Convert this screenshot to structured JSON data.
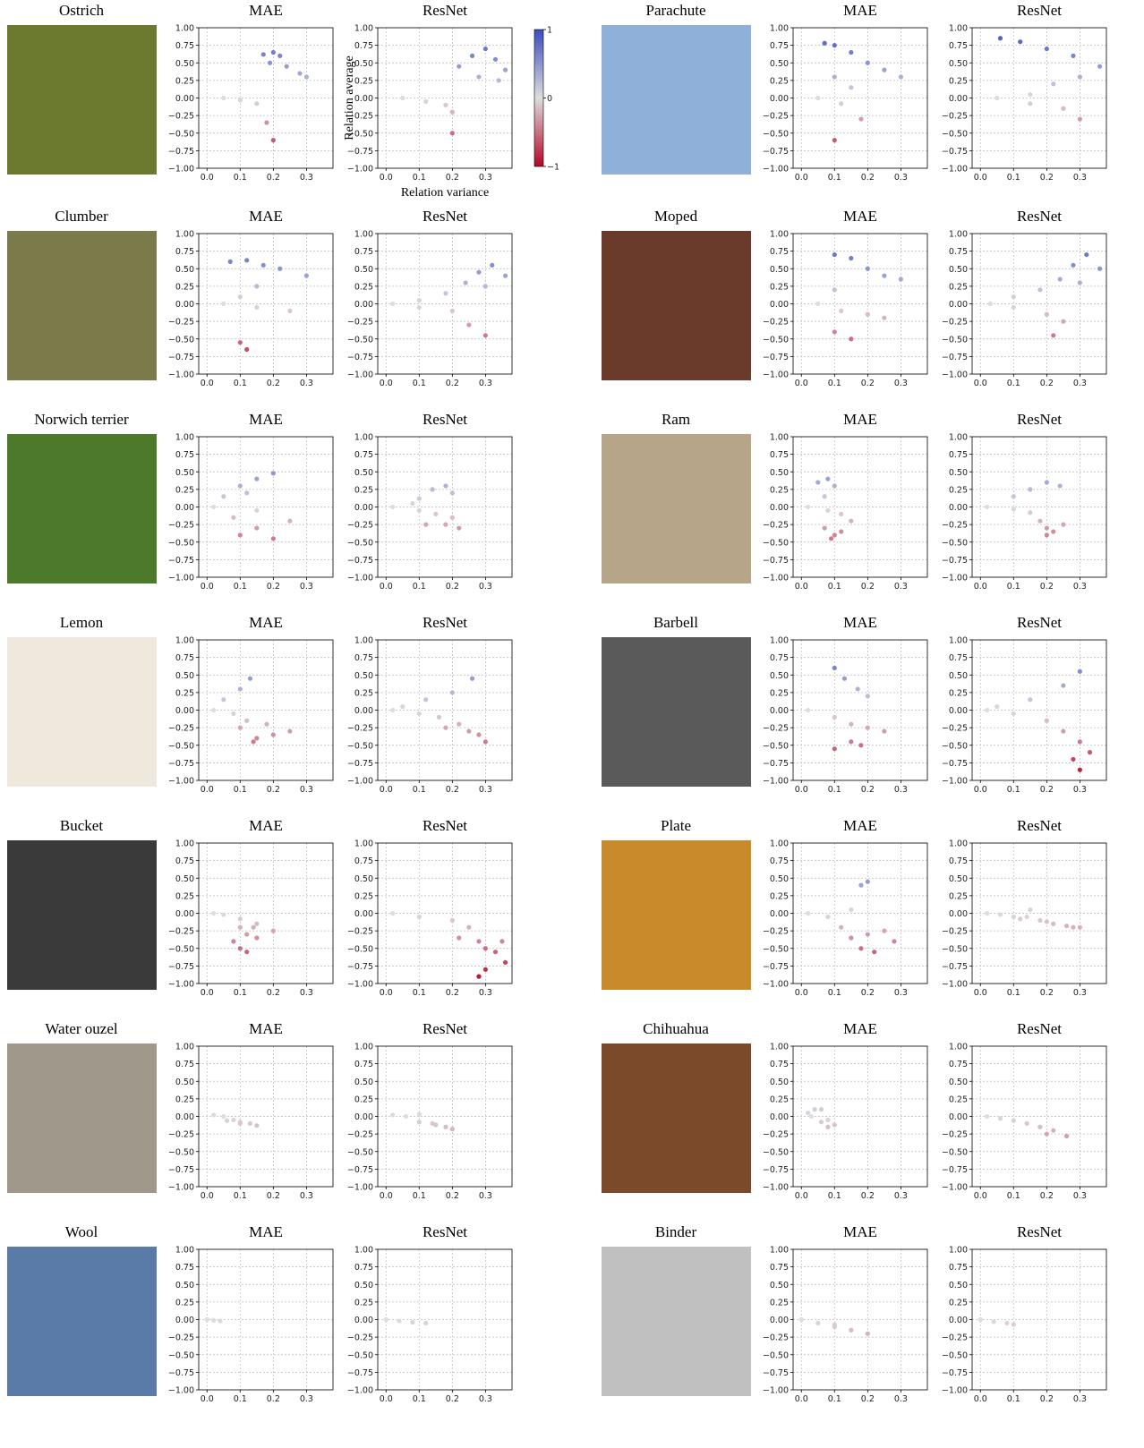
{
  "chart_data": {
    "axes": {
      "xlim": [
        -0.025,
        0.38
      ],
      "ylim": [
        -1,
        1
      ],
      "xticks": [
        {
          "value": 0,
          "label": "0.0"
        },
        {
          "value": 0.1,
          "label": "0.1"
        },
        {
          "value": 0.2,
          "label": "0.2"
        },
        {
          "value": 0.3,
          "label": "0.3"
        }
      ],
      "yticks": [
        {
          "value": 1,
          "label": "1.00"
        },
        {
          "value": 0.75,
          "label": "0.75"
        },
        {
          "value": 0.5,
          "label": "0.50"
        },
        {
          "value": 0.25,
          "label": "0.25"
        },
        {
          "value": 0,
          "label": "0.00"
        },
        {
          "value": -0.25,
          "label": "−0.25"
        },
        {
          "value": -0.5,
          "label": "−0.50"
        },
        {
          "value": -0.75,
          "label": "−0.75"
        },
        {
          "value": -1,
          "label": "−1.00"
        }
      ],
      "grid": true
    },
    "colorbar": {
      "colormap": "coolwarm",
      "clim": [
        -1,
        1
      ],
      "ticks": [
        1,
        0,
        {
          "value": -1,
          "label": "−1"
        }
      ]
    },
    "xlabel": "Relation variance",
    "ylabel": "Relation average",
    "panels": [
      {
        "label": "Ostrich",
        "charts": [
          {
            "type": "scatter",
            "title": "MAE",
            "x": [
              0.17,
              0.2,
              0.22,
              0.19,
              0.24,
              0.28,
              0.3,
              0.05,
              0.1,
              0.15,
              0.18,
              0.2
            ],
            "y": [
              0.62,
              0.65,
              0.6,
              0.5,
              0.45,
              0.35,
              0.3,
              0,
              -0.03,
              -0.08,
              -0.35,
              -0.6
            ]
          },
          {
            "type": "scatter",
            "title": "ResNet",
            "x": [
              0.22,
              0.26,
              0.3,
              0.33,
              0.36,
              0.28,
              0.34,
              0.05,
              0.12,
              0.18,
              0.2,
              0.2
            ],
            "y": [
              0.45,
              0.6,
              0.7,
              0.55,
              0.4,
              0.3,
              0.25,
              0,
              -0.05,
              -0.1,
              -0.2,
              -0.5
            ]
          }
        ]
      },
      {
        "label": "Parachute",
        "charts": [
          {
            "type": "scatter",
            "title": "MAE",
            "x": [
              0.07,
              0.1,
              0.15,
              0.2,
              0.25,
              0.3,
              0.1,
              0.15,
              0.05,
              0.12,
              0.18,
              0.1
            ],
            "y": [
              0.78,
              0.75,
              0.65,
              0.5,
              0.4,
              0.3,
              0.3,
              0.15,
              0,
              -0.08,
              -0.3,
              -0.6
            ]
          },
          {
            "type": "scatter",
            "title": "ResNet",
            "x": [
              0.06,
              0.12,
              0.2,
              0.28,
              0.36,
              0.3,
              0.22,
              0.15,
              0.05,
              0.15,
              0.25,
              0.3
            ],
            "y": [
              0.85,
              0.8,
              0.7,
              0.6,
              0.45,
              0.3,
              0.2,
              0.05,
              0,
              -0.08,
              -0.15,
              -0.3
            ]
          }
        ]
      },
      {
        "label": "Clumber",
        "charts": [
          {
            "type": "scatter",
            "title": "MAE",
            "x": [
              0.07,
              0.12,
              0.17,
              0.22,
              0.3,
              0.15,
              0.1,
              0.05,
              0.15,
              0.25,
              0.1,
              0.12
            ],
            "y": [
              0.6,
              0.62,
              0.55,
              0.5,
              0.4,
              0.25,
              0.1,
              0,
              -0.05,
              -0.1,
              -0.55,
              -0.65
            ]
          },
          {
            "type": "scatter",
            "title": "ResNet",
            "x": [
              0.02,
              0.1,
              0.18,
              0.24,
              0.28,
              0.32,
              0.36,
              0.3,
              0.1,
              0.2,
              0.25,
              0.3
            ],
            "y": [
              0,
              0.05,
              0.15,
              0.3,
              0.45,
              0.55,
              0.4,
              0.25,
              -0.05,
              -0.1,
              -0.3,
              -0.45
            ]
          }
        ]
      },
      {
        "label": "Moped",
        "charts": [
          {
            "type": "scatter",
            "title": "MAE",
            "x": [
              0.1,
              0.15,
              0.2,
              0.25,
              0.3,
              0.1,
              0.05,
              0.12,
              0.2,
              0.25,
              0.1,
              0.15
            ],
            "y": [
              0.7,
              0.65,
              0.5,
              0.4,
              0.35,
              0.2,
              0,
              -0.1,
              -0.15,
              -0.2,
              -0.4,
              -0.5
            ]
          },
          {
            "type": "scatter",
            "title": "ResNet",
            "x": [
              0.03,
              0.1,
              0.18,
              0.24,
              0.28,
              0.32,
              0.36,
              0.3,
              0.1,
              0.2,
              0.25,
              0.22
            ],
            "y": [
              0,
              0.1,
              0.2,
              0.35,
              0.55,
              0.7,
              0.5,
              0.3,
              -0.05,
              -0.15,
              -0.25,
              -0.45
            ]
          }
        ]
      },
      {
        "label": "Norwich terrier",
        "charts": [
          {
            "type": "scatter",
            "title": "MAE",
            "x": [
              0.05,
              0.1,
              0.15,
              0.2,
              0.12,
              0.02,
              0.15,
              0.25,
              0.08,
              0.15,
              0.2,
              0.1
            ],
            "y": [
              0.15,
              0.3,
              0.4,
              0.48,
              0.2,
              0,
              -0.05,
              -0.2,
              -0.15,
              -0.3,
              -0.45,
              -0.4
            ]
          },
          {
            "type": "scatter",
            "title": "ResNet",
            "x": [
              0.1,
              0.14,
              0.18,
              0.2,
              0.02,
              0.1,
              0.15,
              0.2,
              0.22,
              0.12,
              0.18,
              0.08
            ],
            "y": [
              0.12,
              0.25,
              0.3,
              0.2,
              0,
              -0.05,
              -0.1,
              -0.15,
              -0.3,
              -0.25,
              -0.25,
              0.05
            ]
          }
        ]
      },
      {
        "label": "Ram",
        "charts": [
          {
            "type": "scatter",
            "title": "MAE",
            "x": [
              0.05,
              0.08,
              0.1,
              0.07,
              0.02,
              0.08,
              0.12,
              0.15,
              0.07,
              0.1,
              0.12,
              0.09
            ],
            "y": [
              0.35,
              0.4,
              0.3,
              0.15,
              0,
              -0.05,
              -0.1,
              -0.2,
              -0.3,
              -0.4,
              -0.35,
              -0.45
            ]
          },
          {
            "type": "scatter",
            "title": "ResNet",
            "x": [
              0.1,
              0.15,
              0.2,
              0.24,
              0.02,
              0.1,
              0.15,
              0.18,
              0.2,
              0.22,
              0.25,
              0.2
            ],
            "y": [
              0.15,
              0.25,
              0.35,
              0.3,
              0,
              -0.03,
              -0.08,
              -0.2,
              -0.3,
              -0.35,
              -0.25,
              -0.4
            ]
          }
        ]
      },
      {
        "label": "Lemon",
        "charts": [
          {
            "type": "scatter",
            "title": "MAE",
            "x": [
              0.05,
              0.1,
              0.13,
              0.02,
              0.08,
              0.12,
              0.18,
              0.25,
              0.15,
              0.2,
              0.1,
              0.14
            ],
            "y": [
              0.15,
              0.3,
              0.45,
              0,
              -0.05,
              -0.15,
              -0.2,
              -0.3,
              -0.4,
              -0.35,
              -0.25,
              -0.45
            ]
          },
          {
            "type": "scatter",
            "title": "ResNet",
            "x": [
              0.05,
              0.12,
              0.2,
              0.26,
              0.02,
              0.1,
              0.16,
              0.22,
              0.28,
              0.3,
              0.25,
              0.18
            ],
            "y": [
              0.05,
              0.15,
              0.25,
              0.45,
              0,
              -0.05,
              -0.1,
              -0.2,
              -0.35,
              -0.45,
              -0.3,
              -0.25
            ]
          }
        ]
      },
      {
        "label": "Barbell",
        "charts": [
          {
            "type": "scatter",
            "title": "MAE",
            "x": [
              0.1,
              0.13,
              0.17,
              0.2,
              0.02,
              0.1,
              0.15,
              0.2,
              0.25,
              0.1,
              0.15,
              0.18
            ],
            "y": [
              0.6,
              0.45,
              0.3,
              0.2,
              0,
              -0.1,
              -0.2,
              -0.25,
              -0.3,
              -0.55,
              -0.45,
              -0.5
            ]
          },
          {
            "type": "scatter",
            "title": "ResNet",
            "x": [
              0.05,
              0.15,
              0.25,
              0.3,
              0.02,
              0.1,
              0.2,
              0.25,
              0.3,
              0.33,
              0.28,
              0.3
            ],
            "y": [
              0.05,
              0.15,
              0.35,
              0.55,
              0,
              -0.05,
              -0.15,
              -0.3,
              -0.45,
              -0.6,
              -0.7,
              -0.85
            ]
          }
        ]
      },
      {
        "label": "Bucket",
        "charts": [
          {
            "type": "scatter",
            "title": "MAE",
            "x": [
              0.02,
              0.05,
              0.1,
              0.15,
              0.2,
              0.1,
              0.12,
              0.15,
              0.08,
              0.1,
              0.12,
              0.14
            ],
            "y": [
              0,
              -0.02,
              -0.08,
              -0.15,
              -0.25,
              -0.2,
              -0.3,
              -0.35,
              -0.4,
              -0.5,
              -0.55,
              -0.2
            ]
          },
          {
            "type": "scatter",
            "title": "ResNet",
            "x": [
              0.02,
              0.1,
              0.2,
              0.25,
              0.22,
              0.28,
              0.3,
              0.33,
              0.36,
              0.3,
              0.28,
              0.35
            ],
            "y": [
              0,
              -0.05,
              -0.1,
              -0.2,
              -0.35,
              -0.4,
              -0.5,
              -0.55,
              -0.7,
              -0.8,
              -0.9,
              -0.4
            ]
          }
        ]
      },
      {
        "label": "Plate",
        "charts": [
          {
            "type": "scatter",
            "title": "MAE",
            "x": [
              0.02,
              0.08,
              0.15,
              0.18,
              0.2,
              0.12,
              0.15,
              0.2,
              0.25,
              0.28,
              0.18,
              0.22
            ],
            "y": [
              0,
              -0.05,
              0.05,
              0.4,
              0.45,
              -0.2,
              -0.35,
              -0.3,
              -0.25,
              -0.4,
              -0.5,
              -0.55
            ]
          },
          {
            "type": "scatter",
            "title": "ResNet",
            "x": [
              0.02,
              0.06,
              0.1,
              0.14,
              0.18,
              0.22,
              0.26,
              0.3,
              0.15,
              0.12,
              0.2,
              0.28
            ],
            "y": [
              0,
              -0.02,
              -0.05,
              -0.05,
              -0.1,
              -0.15,
              -0.18,
              -0.2,
              0.05,
              -0.08,
              -0.12,
              -0.2
            ]
          }
        ]
      },
      {
        "label": "Water ouzel",
        "charts": [
          {
            "type": "scatter",
            "title": "MAE",
            "x": [
              0.02,
              0.05,
              0.08,
              0.1,
              0.13,
              0.15,
              0.06,
              0.1
            ],
            "y": [
              0.02,
              0,
              -0.05,
              -0.08,
              -0.1,
              -0.13,
              -0.06,
              -0.1
            ]
          },
          {
            "type": "scatter",
            "title": "ResNet",
            "x": [
              0.02,
              0.06,
              0.1,
              0.14,
              0.18,
              0.2,
              0.1,
              0.15
            ],
            "y": [
              0.02,
              0,
              0.03,
              -0.1,
              -0.15,
              -0.18,
              -0.08,
              -0.12
            ]
          }
        ]
      },
      {
        "label": "Chihuahua",
        "charts": [
          {
            "type": "scatter",
            "title": "MAE",
            "x": [
              0.02,
              0.04,
              0.06,
              0.08,
              0.1,
              0.06,
              0.08,
              0.03
            ],
            "y": [
              0.05,
              0.1,
              0.1,
              -0.05,
              -0.12,
              -0.08,
              -0.15,
              0
            ]
          },
          {
            "type": "scatter",
            "title": "ResNet",
            "x": [
              0.02,
              0.06,
              0.1,
              0.14,
              0.18,
              0.22,
              0.26,
              0.2
            ],
            "y": [
              0,
              -0.03,
              -0.06,
              -0.1,
              -0.15,
              -0.2,
              -0.28,
              -0.25
            ]
          }
        ]
      },
      {
        "label": "Wool",
        "charts": [
          {
            "type": "scatter",
            "title": "MAE",
            "x": [
              0,
              0.02,
              0.04
            ],
            "y": [
              0,
              -0.01,
              -0.02
            ]
          },
          {
            "type": "scatter",
            "title": "ResNet",
            "x": [
              0,
              0.04,
              0.08,
              0.12
            ],
            "y": [
              0,
              -0.02,
              -0.04,
              -0.05
            ]
          }
        ]
      },
      {
        "label": "Binder",
        "charts": [
          {
            "type": "scatter",
            "title": "MAE",
            "x": [
              0,
              0.05,
              0.1,
              0.15,
              0.2,
              0.1
            ],
            "y": [
              0,
              -0.05,
              -0.1,
              -0.15,
              -0.2,
              -0.07
            ]
          },
          {
            "type": "scatter",
            "title": "ResNet",
            "x": [
              0,
              0.04,
              0.08,
              0.1
            ],
            "y": [
              0,
              -0.03,
              -0.05,
              -0.07
            ]
          }
        ]
      }
    ]
  }
}
